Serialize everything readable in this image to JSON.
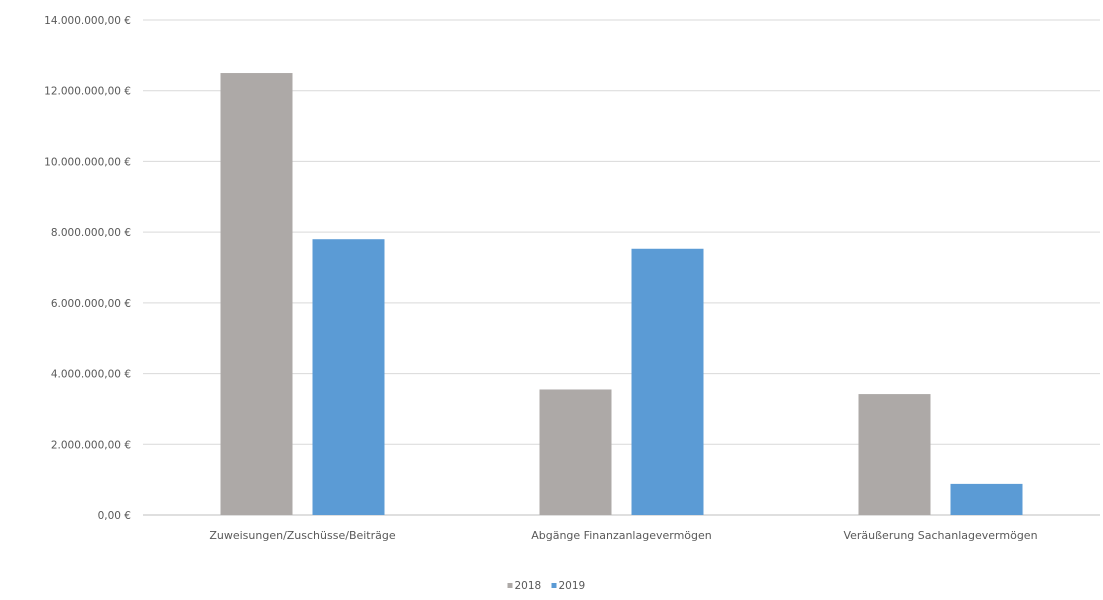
{
  "chart_data": {
    "type": "bar",
    "title": "",
    "xlabel": "",
    "ylabel": "",
    "categories": [
      "Zuweisungen/Zuschüsse/Beiträge",
      "Abgänge Finanzanlagevermögen",
      "Veräußerung Sachanlagevermögen"
    ],
    "series": [
      {
        "name": "2018",
        "values": [
          12500000,
          3550000,
          3420000
        ],
        "color": "#ada9a7"
      },
      {
        "name": "2019",
        "values": [
          7800000,
          7530000,
          880000
        ],
        "color": "#5b9bd5"
      }
    ],
    "ylim": [
      0,
      14000000
    ],
    "yticks": [
      "0,00 €",
      "2.000.000,00 €",
      "4.000.000,00 €",
      "6.000.000,00 €",
      "8.000.000,00 €",
      "10.000.000,00 €",
      "12.000.000,00 €",
      "14.000.000,00 €"
    ],
    "grid": true,
    "legend_position": "bottom-center"
  }
}
